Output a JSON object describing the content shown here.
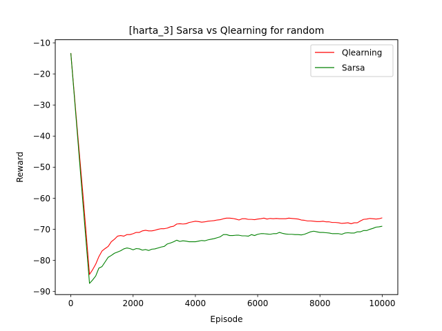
{
  "chart_data": {
    "type": "line",
    "title": "[harta_3] Sarsa vs Qlearning for random",
    "xlabel": "Episode",
    "ylabel": "Reward",
    "xlim": [
      -500,
      10500
    ],
    "ylim": [
      -91,
      -9
    ],
    "xticks": [
      0,
      2000,
      4000,
      6000,
      8000,
      10000
    ],
    "yticks": [
      -90,
      -80,
      -70,
      -60,
      -50,
      -40,
      -30,
      -20,
      -10
    ],
    "xtick_labels": [
      "0",
      "2000",
      "4000",
      "6000",
      "8000",
      "10000"
    ],
    "ytick_labels": [
      "−90",
      "−80",
      "−70",
      "−60",
      "−50",
      "−40",
      "−30",
      "−20",
      "−10"
    ],
    "grid": false,
    "legend_position": "top-right",
    "series": [
      {
        "name": "Qlearning",
        "color": "#ff0000",
        "points": [
          [
            0,
            -13.3
          ],
          [
            200,
            -37
          ],
          [
            400,
            -60
          ],
          [
            600,
            -84.5
          ],
          [
            700,
            -83
          ],
          [
            800,
            -81.2
          ],
          [
            900,
            -78.8
          ],
          [
            1000,
            -77
          ],
          [
            1100,
            -76.2
          ],
          [
            1200,
            -75.5
          ],
          [
            1300,
            -74
          ],
          [
            1400,
            -73.2
          ],
          [
            1500,
            -72.2
          ],
          [
            1600,
            -72
          ],
          [
            1700,
            -72.2
          ],
          [
            1800,
            -71.7
          ],
          [
            1900,
            -71.7
          ],
          [
            2000,
            -71.4
          ],
          [
            2100,
            -71
          ],
          [
            2200,
            -71
          ],
          [
            2300,
            -70.5
          ],
          [
            2400,
            -70.3
          ],
          [
            2500,
            -70.5
          ],
          [
            2600,
            -70.5
          ],
          [
            2700,
            -70.3
          ],
          [
            2800,
            -70
          ],
          [
            2900,
            -69.8
          ],
          [
            3000,
            -69.8
          ],
          [
            3100,
            -69.6
          ],
          [
            3200,
            -69.2
          ],
          [
            3300,
            -69
          ],
          [
            3400,
            -68.3
          ],
          [
            3500,
            -68.2
          ],
          [
            3600,
            -68.3
          ],
          [
            3700,
            -68.2
          ],
          [
            3800,
            -67.8
          ],
          [
            3900,
            -67.6
          ],
          [
            4000,
            -67.4
          ],
          [
            4100,
            -67.5
          ],
          [
            4200,
            -67.7
          ],
          [
            4300,
            -67.6
          ],
          [
            4400,
            -67.4
          ],
          [
            4500,
            -67.3
          ],
          [
            4600,
            -67.2
          ],
          [
            4700,
            -67
          ],
          [
            4800,
            -66.9
          ],
          [
            4900,
            -66.6
          ],
          [
            5000,
            -66.4
          ],
          [
            5100,
            -66.4
          ],
          [
            5200,
            -66.5
          ],
          [
            5300,
            -66.7
          ],
          [
            5400,
            -67
          ],
          [
            5500,
            -66.6
          ],
          [
            5600,
            -66.6
          ],
          [
            5700,
            -66.8
          ],
          [
            5800,
            -66.8
          ],
          [
            5900,
            -66.9
          ],
          [
            6000,
            -66.7
          ],
          [
            6100,
            -66.6
          ],
          [
            6200,
            -66.4
          ],
          [
            6300,
            -66.7
          ],
          [
            6400,
            -66.5
          ],
          [
            6500,
            -66.6
          ],
          [
            6600,
            -66.5
          ],
          [
            6700,
            -66.6
          ],
          [
            6800,
            -66.6
          ],
          [
            6900,
            -66.6
          ],
          [
            7000,
            -66.4
          ],
          [
            7100,
            -66.5
          ],
          [
            7200,
            -66.6
          ],
          [
            7300,
            -66.7
          ],
          [
            7400,
            -67
          ],
          [
            7500,
            -67.1
          ],
          [
            7600,
            -67.3
          ],
          [
            7700,
            -67.3
          ],
          [
            7800,
            -67.4
          ],
          [
            7900,
            -67.5
          ],
          [
            8000,
            -67.5
          ],
          [
            8100,
            -67.4
          ],
          [
            8200,
            -67.6
          ],
          [
            8300,
            -67.6
          ],
          [
            8400,
            -67.8
          ],
          [
            8500,
            -67.8
          ],
          [
            8600,
            -67.9
          ],
          [
            8700,
            -68.1
          ],
          [
            8800,
            -68
          ],
          [
            8900,
            -67.9
          ],
          [
            9000,
            -68.2
          ],
          [
            9100,
            -67.9
          ],
          [
            9200,
            -67.9
          ],
          [
            9300,
            -67.3
          ],
          [
            9400,
            -66.8
          ],
          [
            9500,
            -66.7
          ],
          [
            9600,
            -66.5
          ],
          [
            9700,
            -66.6
          ],
          [
            9800,
            -66.7
          ],
          [
            9900,
            -66.6
          ],
          [
            10000,
            -66.3
          ]
        ]
      },
      {
        "name": "Sarsa",
        "color": "#008000",
        "points": [
          [
            0,
            -13.3
          ],
          [
            200,
            -38
          ],
          [
            400,
            -63
          ],
          [
            600,
            -87.4
          ],
          [
            700,
            -86.3
          ],
          [
            800,
            -85
          ],
          [
            900,
            -82.5
          ],
          [
            1000,
            -82
          ],
          [
            1100,
            -80.5
          ],
          [
            1200,
            -79
          ],
          [
            1300,
            -78.4
          ],
          [
            1400,
            -77.7
          ],
          [
            1500,
            -77.3
          ],
          [
            1600,
            -76.9
          ],
          [
            1700,
            -76.3
          ],
          [
            1800,
            -76
          ],
          [
            1900,
            -76.2
          ],
          [
            2000,
            -76.6
          ],
          [
            2100,
            -76.2
          ],
          [
            2200,
            -76.3
          ],
          [
            2300,
            -76.7
          ],
          [
            2400,
            -76.5
          ],
          [
            2500,
            -76.8
          ],
          [
            2600,
            -76.4
          ],
          [
            2700,
            -76.3
          ],
          [
            2800,
            -76
          ],
          [
            2900,
            -75.7
          ],
          [
            3000,
            -75.5
          ],
          [
            3100,
            -74.7
          ],
          [
            3200,
            -74.4
          ],
          [
            3300,
            -74
          ],
          [
            3400,
            -73.5
          ],
          [
            3500,
            -73.9
          ],
          [
            3600,
            -73.7
          ],
          [
            3700,
            -73.8
          ],
          [
            3800,
            -74
          ],
          [
            3900,
            -74
          ],
          [
            4000,
            -74
          ],
          [
            4100,
            -73.8
          ],
          [
            4200,
            -73.6
          ],
          [
            4300,
            -73.7
          ],
          [
            4400,
            -73.4
          ],
          [
            4500,
            -73.2
          ],
          [
            4600,
            -73
          ],
          [
            4700,
            -72.7
          ],
          [
            4800,
            -72.4
          ],
          [
            4900,
            -71.7
          ],
          [
            5000,
            -71.7
          ],
          [
            5100,
            -72
          ],
          [
            5200,
            -72
          ],
          [
            5300,
            -71.9
          ],
          [
            5400,
            -71.9
          ],
          [
            5500,
            -72.1
          ],
          [
            5600,
            -72.1
          ],
          [
            5700,
            -72.2
          ],
          [
            5800,
            -71.7
          ],
          [
            5900,
            -72
          ],
          [
            6000,
            -71.6
          ],
          [
            6100,
            -71.4
          ],
          [
            6200,
            -71.4
          ],
          [
            6300,
            -71.5
          ],
          [
            6400,
            -71.6
          ],
          [
            6500,
            -71.4
          ],
          [
            6600,
            -71.4
          ],
          [
            6700,
            -71
          ],
          [
            6800,
            -71.3
          ],
          [
            6900,
            -71.5
          ],
          [
            7000,
            -71.6
          ],
          [
            7100,
            -71.6
          ],
          [
            7200,
            -71.7
          ],
          [
            7300,
            -71.7
          ],
          [
            7400,
            -71.8
          ],
          [
            7500,
            -71.6
          ],
          [
            7600,
            -71.2
          ],
          [
            7700,
            -70.8
          ],
          [
            7800,
            -70.6
          ],
          [
            7900,
            -70.8
          ],
          [
            8000,
            -71
          ],
          [
            8100,
            -71
          ],
          [
            8200,
            -71.1
          ],
          [
            8300,
            -71.2
          ],
          [
            8400,
            -71.4
          ],
          [
            8500,
            -71.4
          ],
          [
            8600,
            -71.4
          ],
          [
            8700,
            -71.6
          ],
          [
            8800,
            -71.2
          ],
          [
            8900,
            -71.1
          ],
          [
            9000,
            -71.2
          ],
          [
            9100,
            -71.2
          ],
          [
            9200,
            -70.8
          ],
          [
            9300,
            -70.8
          ],
          [
            9400,
            -70.4
          ],
          [
            9500,
            -70.4
          ],
          [
            9600,
            -70
          ],
          [
            9700,
            -69.7
          ],
          [
            9800,
            -69.3
          ],
          [
            9900,
            -69.2
          ],
          [
            10000,
            -69
          ]
        ]
      }
    ]
  }
}
